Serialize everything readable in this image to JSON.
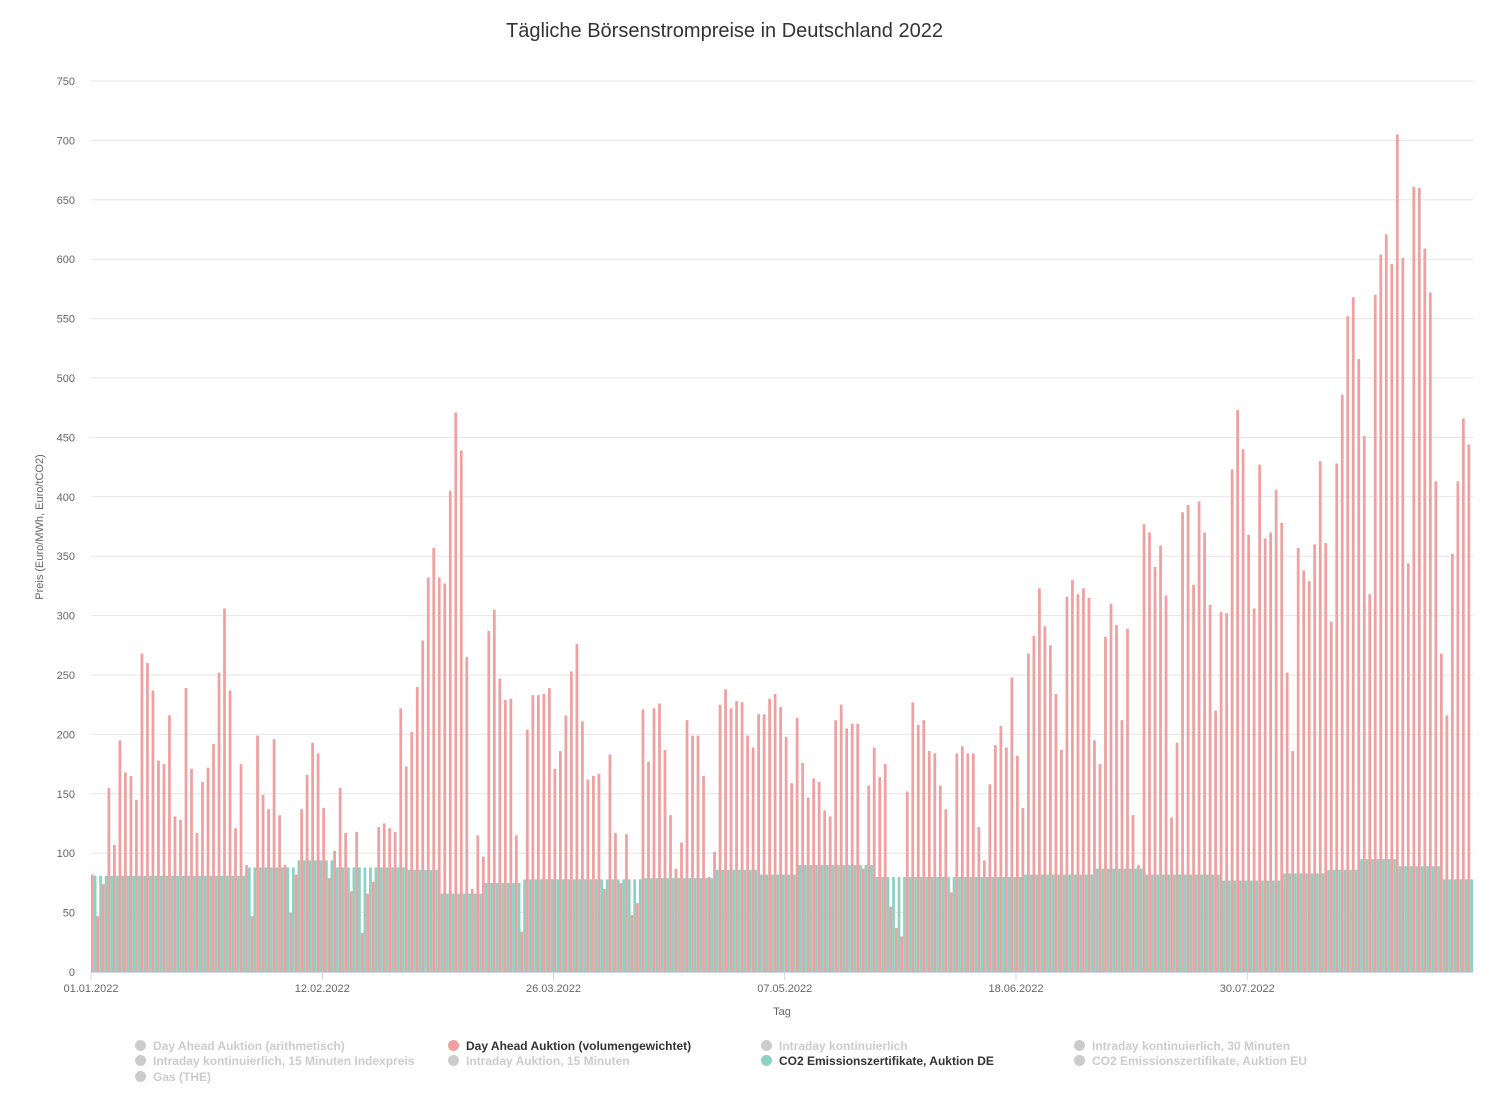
{
  "chart_data": {
    "type": "bar",
    "title": "Tägliche Börsenstrompreise in Deutschland 2022",
    "xlabel": "Tag",
    "ylabel": "Preis (Euro/MWh, Euro/tCO2)",
    "ylim": [
      0,
      750
    ],
    "yticks": [
      0,
      50,
      100,
      150,
      200,
      250,
      300,
      350,
      400,
      450,
      500,
      550,
      600,
      650,
      700,
      750
    ],
    "start_date": "01.01.2022",
    "xtick_labels": [
      "01.01.2022",
      "12.02.2022",
      "26.03.2022",
      "07.05.2022",
      "18.06.2022",
      "30.07.2022"
    ],
    "xtick_every_days": 42,
    "grid": true,
    "legend_position": "bottom",
    "series": [
      {
        "name": "Day Ahead Auktion (volumengewichtet)",
        "color": "#f0a0a0",
        "values": [
          82,
          47,
          74,
          155,
          107,
          195,
          168,
          165,
          145,
          268,
          260,
          237,
          178,
          175,
          216,
          131,
          128,
          239,
          171,
          117,
          160,
          172,
          192,
          252,
          306,
          237,
          121,
          175,
          90,
          47,
          199,
          149,
          137,
          196,
          132,
          90,
          50,
          82,
          137,
          166,
          193,
          184,
          138,
          79,
          102,
          155,
          117,
          68,
          118,
          33,
          66,
          76,
          122,
          125,
          121,
          118,
          222,
          173,
          202,
          240,
          279,
          332,
          357,
          332,
          327,
          405,
          471,
          439,
          265,
          70,
          115,
          97,
          287,
          305,
          247,
          229,
          230,
          115,
          34,
          204,
          233,
          233,
          234,
          239,
          171,
          186,
          216,
          253,
          276,
          211,
          162,
          165,
          167,
          70,
          183,
          117,
          75,
          116,
          48,
          58,
          221,
          177,
          222,
          226,
          187,
          132,
          87,
          109,
          212,
          199,
          199,
          165,
          80,
          101,
          225,
          238,
          222,
          228,
          227,
          199,
          189,
          217,
          217,
          230,
          234,
          223,
          198,
          159,
          214,
          176,
          147,
          163,
          160,
          136,
          131,
          212,
          225,
          205,
          209,
          209,
          87,
          157,
          189,
          164,
          175,
          55,
          37,
          30,
          152,
          227,
          208,
          212,
          186,
          184,
          157,
          137,
          67,
          184,
          190,
          184,
          184,
          122,
          94,
          158,
          191,
          207,
          189,
          248,
          182,
          138,
          268,
          283,
          323,
          291,
          275,
          234,
          187,
          316,
          330,
          318,
          323,
          315,
          195,
          175,
          282,
          310,
          292,
          212,
          289,
          132,
          90,
          377,
          370,
          341,
          359,
          317,
          130,
          193,
          387,
          393,
          326,
          396,
          370,
          309,
          220,
          303,
          302,
          423,
          473,
          440,
          368,
          306,
          427,
          365,
          370,
          406,
          378,
          252,
          186,
          357,
          338,
          329,
          360,
          430,
          361,
          295,
          428,
          486,
          552,
          568,
          516,
          451,
          318,
          570,
          604,
          621,
          596,
          705,
          601,
          344,
          661,
          660,
          609,
          572,
          413,
          268,
          216,
          352,
          413,
          466,
          444
        ]
      },
      {
        "name": "CO2 Emissionszertifikate, Auktion DE",
        "color": "#8dd1c3",
        "value_runs": [
          [
            81,
            28
          ],
          [
            88,
            9
          ],
          [
            94,
            7
          ],
          [
            88,
            13
          ],
          [
            86,
            6
          ],
          [
            66,
            8
          ],
          [
            75,
            7
          ],
          [
            78,
            22
          ],
          [
            79,
            13
          ],
          [
            86,
            8
          ],
          [
            82,
            7
          ],
          [
            90,
            14
          ],
          [
            80,
            27
          ],
          [
            82,
            13
          ],
          [
            87,
            9
          ],
          [
            82,
            14
          ],
          [
            77,
            11
          ],
          [
            83,
            8
          ],
          [
            86,
            6
          ],
          [
            95,
            7
          ],
          [
            89,
            8
          ],
          [
            78,
            6
          ]
        ]
      }
    ]
  },
  "legend": [
    {
      "label": "Day Ahead Auktion (arithmetisch)",
      "active": false
    },
    {
      "label": "Day Ahead Auktion (volumengewichtet)",
      "active": true,
      "color": "#f0a0a0"
    },
    {
      "label": "Intraday kontinuierlich",
      "active": false
    },
    {
      "label": "Intraday kontinuierlich, 30 Minuten",
      "active": false
    },
    {
      "label": "Intraday kontinuierlich, 15 Minuten Indexpreis",
      "active": false
    },
    {
      "label": "Intraday Auktion, 15 Minuten",
      "active": false
    },
    {
      "label": "CO2 Emissionszertifikate, Auktion DE",
      "active": true,
      "color": "#8dd1c3"
    },
    {
      "label": "CO2 Emissionszertifikate, Auktion EU",
      "active": false
    },
    {
      "label": "Gas (THE)",
      "active": false
    }
  ]
}
